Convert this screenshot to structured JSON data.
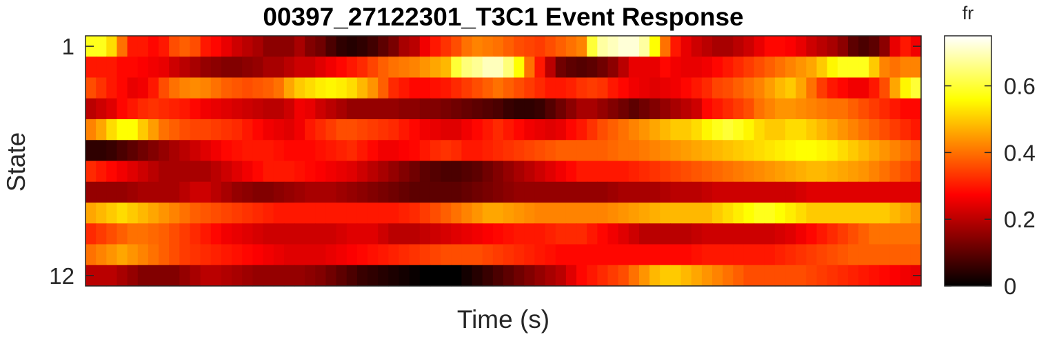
{
  "chart_data": {
    "type": "heatmap",
    "title": "00397_27122301_T3C1 Event Response",
    "xlabel": "Time (s)",
    "ylabel": "State",
    "y_tick_labels": [
      "1",
      "12"
    ],
    "colorbar": {
      "label": "fr",
      "colormap": "hot",
      "clim": [
        0,
        0.75
      ],
      "ticks": [
        0,
        0.2,
        0.4,
        0.6
      ],
      "tick_labels": [
        "0",
        "0.2",
        "0.4",
        "0.6"
      ]
    },
    "rows": [
      "1",
      "2",
      "3",
      "4",
      "5",
      "6",
      "7",
      "8",
      "9",
      "10",
      "11",
      "12"
    ],
    "columns": 80,
    "values": [
      [
        0.58,
        0.58,
        0.52,
        0.4,
        0.3,
        0.3,
        0.28,
        0.3,
        0.36,
        0.38,
        0.36,
        0.3,
        0.28,
        0.25,
        0.22,
        0.2,
        0.18,
        0.15,
        0.15,
        0.15,
        0.18,
        0.14,
        0.12,
        0.08,
        0.05,
        0.04,
        0.05,
        0.07,
        0.1,
        0.13,
        0.18,
        0.2,
        0.26,
        0.3,
        0.33,
        0.36,
        0.4,
        0.42,
        0.41,
        0.4,
        0.38,
        0.36,
        0.35,
        0.34,
        0.36,
        0.38,
        0.4,
        0.42,
        0.6,
        0.68,
        0.7,
        0.72,
        0.72,
        0.68,
        0.56,
        0.4,
        0.3,
        0.25,
        0.22,
        0.2,
        0.18,
        0.18,
        0.2,
        0.22,
        0.25,
        0.28,
        0.28,
        0.27,
        0.25,
        0.22,
        0.2,
        0.18,
        0.15,
        0.1,
        0.08,
        0.1,
        0.15,
        0.25,
        0.3,
        0.26
      ],
      [
        0.3,
        0.3,
        0.3,
        0.28,
        0.28,
        0.27,
        0.26,
        0.25,
        0.22,
        0.2,
        0.18,
        0.16,
        0.15,
        0.14,
        0.14,
        0.15,
        0.16,
        0.18,
        0.18,
        0.2,
        0.22,
        0.22,
        0.24,
        0.26,
        0.28,
        0.3,
        0.32,
        0.35,
        0.38,
        0.4,
        0.41,
        0.42,
        0.44,
        0.46,
        0.48,
        0.6,
        0.65,
        0.67,
        0.7,
        0.7,
        0.65,
        0.56,
        0.4,
        0.3,
        0.2,
        0.12,
        0.1,
        0.09,
        0.1,
        0.12,
        0.15,
        0.2,
        0.25,
        0.25,
        0.25,
        0.28,
        0.26,
        0.25,
        0.25,
        0.26,
        0.28,
        0.3,
        0.32,
        0.34,
        0.36,
        0.38,
        0.4,
        0.42,
        0.44,
        0.46,
        0.5,
        0.55,
        0.58,
        0.58,
        0.58,
        0.5,
        0.42,
        0.4,
        0.42,
        0.42
      ],
      [
        0.36,
        0.33,
        0.3,
        0.28,
        0.25,
        0.26,
        0.3,
        0.36,
        0.4,
        0.42,
        0.43,
        0.42,
        0.4,
        0.38,
        0.37,
        0.36,
        0.37,
        0.38,
        0.4,
        0.46,
        0.5,
        0.52,
        0.54,
        0.55,
        0.54,
        0.52,
        0.48,
        0.44,
        0.38,
        0.32,
        0.3,
        0.28,
        0.28,
        0.29,
        0.3,
        0.32,
        0.34,
        0.36,
        0.38,
        0.4,
        0.38,
        0.36,
        0.34,
        0.32,
        0.3,
        0.3,
        0.31,
        0.33,
        0.34,
        0.33,
        0.3,
        0.28,
        0.26,
        0.25,
        0.24,
        0.25,
        0.26,
        0.28,
        0.3,
        0.32,
        0.35,
        0.36,
        0.38,
        0.4,
        0.42,
        0.45,
        0.48,
        0.5,
        0.46,
        0.4,
        0.34,
        0.3,
        0.28,
        0.26,
        0.26,
        0.3,
        0.36,
        0.46,
        0.55,
        0.6
      ],
      [
        0.2,
        0.22,
        0.24,
        0.28,
        0.3,
        0.32,
        0.33,
        0.32,
        0.31,
        0.3,
        0.28,
        0.26,
        0.25,
        0.24,
        0.23,
        0.22,
        0.21,
        0.2,
        0.2,
        0.22,
        0.26,
        0.25,
        0.22,
        0.2,
        0.18,
        0.16,
        0.16,
        0.16,
        0.16,
        0.16,
        0.15,
        0.15,
        0.14,
        0.14,
        0.13,
        0.12,
        0.11,
        0.1,
        0.09,
        0.08,
        0.06,
        0.05,
        0.05,
        0.06,
        0.09,
        0.12,
        0.15,
        0.18,
        0.18,
        0.16,
        0.14,
        0.12,
        0.1,
        0.12,
        0.14,
        0.16,
        0.18,
        0.2,
        0.22,
        0.28,
        0.3,
        0.32,
        0.34,
        0.36,
        0.4,
        0.42,
        0.44,
        0.44,
        0.43,
        0.42,
        0.41,
        0.4,
        0.4,
        0.38,
        0.36,
        0.34,
        0.32,
        0.3,
        0.28,
        0.28
      ],
      [
        0.42,
        0.46,
        0.52,
        0.56,
        0.56,
        0.5,
        0.45,
        0.4,
        0.38,
        0.36,
        0.35,
        0.35,
        0.34,
        0.33,
        0.32,
        0.3,
        0.28,
        0.26,
        0.25,
        0.24,
        0.26,
        0.3,
        0.32,
        0.34,
        0.36,
        0.36,
        0.35,
        0.34,
        0.33,
        0.32,
        0.3,
        0.28,
        0.26,
        0.25,
        0.24,
        0.24,
        0.26,
        0.28,
        0.3,
        0.32,
        0.3,
        0.28,
        0.26,
        0.25,
        0.24,
        0.25,
        0.28,
        0.3,
        0.33,
        0.36,
        0.38,
        0.4,
        0.42,
        0.44,
        0.46,
        0.48,
        0.5,
        0.5,
        0.52,
        0.55,
        0.58,
        0.6,
        0.58,
        0.55,
        0.52,
        0.5,
        0.5,
        0.52,
        0.52,
        0.5,
        0.48,
        0.46,
        0.44,
        0.42,
        0.4,
        0.38,
        0.36,
        0.34,
        0.32,
        0.3
      ],
      [
        0.05,
        0.05,
        0.06,
        0.08,
        0.1,
        0.12,
        0.14,
        0.16,
        0.18,
        0.2,
        0.22,
        0.24,
        0.26,
        0.28,
        0.29,
        0.3,
        0.3,
        0.3,
        0.29,
        0.28,
        0.28,
        0.28,
        0.29,
        0.3,
        0.31,
        0.32,
        0.3,
        0.28,
        0.26,
        0.26,
        0.27,
        0.28,
        0.3,
        0.32,
        0.33,
        0.32,
        0.3,
        0.3,
        0.31,
        0.32,
        0.33,
        0.34,
        0.35,
        0.36,
        0.37,
        0.38,
        0.38,
        0.38,
        0.38,
        0.38,
        0.39,
        0.4,
        0.4,
        0.41,
        0.42,
        0.43,
        0.44,
        0.45,
        0.46,
        0.47,
        0.48,
        0.49,
        0.5,
        0.51,
        0.52,
        0.53,
        0.54,
        0.55,
        0.56,
        0.56,
        0.55,
        0.54,
        0.52,
        0.5,
        0.48,
        0.46,
        0.44,
        0.42,
        0.4,
        0.38
      ],
      [
        0.32,
        0.3,
        0.28,
        0.26,
        0.24,
        0.22,
        0.2,
        0.18,
        0.18,
        0.18,
        0.18,
        0.18,
        0.2,
        0.22,
        0.24,
        0.26,
        0.28,
        0.3,
        0.3,
        0.3,
        0.29,
        0.28,
        0.27,
        0.26,
        0.25,
        0.24,
        0.22,
        0.2,
        0.18,
        0.16,
        0.14,
        0.12,
        0.1,
        0.09,
        0.08,
        0.08,
        0.09,
        0.1,
        0.12,
        0.14,
        0.16,
        0.18,
        0.2,
        0.22,
        0.24,
        0.26,
        0.28,
        0.3,
        0.3,
        0.3,
        0.3,
        0.3,
        0.31,
        0.32,
        0.33,
        0.34,
        0.35,
        0.36,
        0.37,
        0.38,
        0.39,
        0.4,
        0.41,
        0.42,
        0.43,
        0.44,
        0.45,
        0.46,
        0.47,
        0.48,
        0.48,
        0.47,
        0.46,
        0.45,
        0.44,
        0.42,
        0.4,
        0.38,
        0.36,
        0.34
      ],
      [
        0.16,
        0.16,
        0.16,
        0.16,
        0.17,
        0.18,
        0.18,
        0.18,
        0.18,
        0.2,
        0.22,
        0.22,
        0.2,
        0.18,
        0.16,
        0.15,
        0.14,
        0.14,
        0.15,
        0.16,
        0.17,
        0.18,
        0.18,
        0.18,
        0.17,
        0.16,
        0.15,
        0.14,
        0.13,
        0.12,
        0.11,
        0.1,
        0.1,
        0.1,
        0.1,
        0.1,
        0.11,
        0.12,
        0.13,
        0.14,
        0.15,
        0.16,
        0.16,
        0.16,
        0.16,
        0.16,
        0.16,
        0.16,
        0.16,
        0.16,
        0.17,
        0.18,
        0.18,
        0.18,
        0.18,
        0.19,
        0.2,
        0.2,
        0.2,
        0.21,
        0.22,
        0.22,
        0.22,
        0.22,
        0.22,
        0.22,
        0.22,
        0.22,
        0.23,
        0.24,
        0.24,
        0.24,
        0.24,
        0.24,
        0.24,
        0.24,
        0.24,
        0.24,
        0.24,
        0.24
      ],
      [
        0.46,
        0.48,
        0.5,
        0.52,
        0.5,
        0.48,
        0.46,
        0.44,
        0.42,
        0.4,
        0.38,
        0.37,
        0.36,
        0.35,
        0.34,
        0.33,
        0.32,
        0.31,
        0.3,
        0.3,
        0.3,
        0.3,
        0.3,
        0.3,
        0.3,
        0.3,
        0.3,
        0.3,
        0.3,
        0.3,
        0.31,
        0.32,
        0.34,
        0.36,
        0.38,
        0.4,
        0.42,
        0.44,
        0.46,
        0.46,
        0.45,
        0.44,
        0.43,
        0.42,
        0.42,
        0.42,
        0.42,
        0.42,
        0.42,
        0.42,
        0.43,
        0.44,
        0.45,
        0.46,
        0.47,
        0.48,
        0.48,
        0.48,
        0.48,
        0.48,
        0.5,
        0.52,
        0.54,
        0.56,
        0.58,
        0.58,
        0.56,
        0.54,
        0.52,
        0.5,
        0.5,
        0.5,
        0.5,
        0.5,
        0.5,
        0.5,
        0.5,
        0.48,
        0.46,
        0.44
      ],
      [
        0.32,
        0.34,
        0.36,
        0.38,
        0.4,
        0.4,
        0.39,
        0.38,
        0.36,
        0.34,
        0.32,
        0.3,
        0.28,
        0.26,
        0.25,
        0.24,
        0.23,
        0.22,
        0.22,
        0.22,
        0.22,
        0.22,
        0.22,
        0.22,
        0.23,
        0.24,
        0.24,
        0.24,
        0.22,
        0.2,
        0.2,
        0.2,
        0.21,
        0.22,
        0.23,
        0.24,
        0.25,
        0.26,
        0.27,
        0.28,
        0.29,
        0.3,
        0.3,
        0.3,
        0.31,
        0.32,
        0.32,
        0.32,
        0.3,
        0.28,
        0.26,
        0.24,
        0.22,
        0.2,
        0.2,
        0.2,
        0.2,
        0.2,
        0.21,
        0.22,
        0.22,
        0.22,
        0.22,
        0.22,
        0.22,
        0.22,
        0.23,
        0.24,
        0.26,
        0.28,
        0.3,
        0.32,
        0.34,
        0.36,
        0.38,
        0.4,
        0.4,
        0.4,
        0.4,
        0.4
      ],
      [
        0.4,
        0.42,
        0.44,
        0.46,
        0.44,
        0.42,
        0.4,
        0.38,
        0.36,
        0.34,
        0.33,
        0.32,
        0.31,
        0.3,
        0.29,
        0.28,
        0.27,
        0.26,
        0.25,
        0.24,
        0.24,
        0.24,
        0.24,
        0.25,
        0.26,
        0.27,
        0.28,
        0.29,
        0.3,
        0.31,
        0.32,
        0.33,
        0.34,
        0.35,
        0.36,
        0.36,
        0.36,
        0.36,
        0.35,
        0.34,
        0.33,
        0.32,
        0.31,
        0.3,
        0.29,
        0.28,
        0.28,
        0.28,
        0.28,
        0.28,
        0.28,
        0.28,
        0.28,
        0.28,
        0.28,
        0.28,
        0.28,
        0.28,
        0.29,
        0.3,
        0.3,
        0.3,
        0.3,
        0.3,
        0.3,
        0.3,
        0.31,
        0.32,
        0.33,
        0.34,
        0.35,
        0.36,
        0.37,
        0.38,
        0.38,
        0.38,
        0.38,
        0.38,
        0.38,
        0.38
      ],
      [
        0.2,
        0.2,
        0.2,
        0.18,
        0.16,
        0.14,
        0.14,
        0.14,
        0.14,
        0.16,
        0.18,
        0.2,
        0.2,
        0.19,
        0.18,
        0.17,
        0.16,
        0.16,
        0.16,
        0.16,
        0.16,
        0.15,
        0.14,
        0.12,
        0.1,
        0.08,
        0.06,
        0.05,
        0.04,
        0.03,
        0.02,
        0.01,
        0.0,
        0.0,
        0.0,
        0.0,
        0.02,
        0.04,
        0.06,
        0.08,
        0.1,
        0.12,
        0.14,
        0.16,
        0.18,
        0.2,
        0.24,
        0.28,
        0.3,
        0.32,
        0.34,
        0.36,
        0.4,
        0.44,
        0.48,
        0.5,
        0.5,
        0.48,
        0.46,
        0.44,
        0.42,
        0.4,
        0.38,
        0.36,
        0.36,
        0.36,
        0.36,
        0.36,
        0.36,
        0.35,
        0.34,
        0.33,
        0.32,
        0.31,
        0.3,
        0.29,
        0.28,
        0.27,
        0.26,
        0.25
      ]
    ]
  }
}
